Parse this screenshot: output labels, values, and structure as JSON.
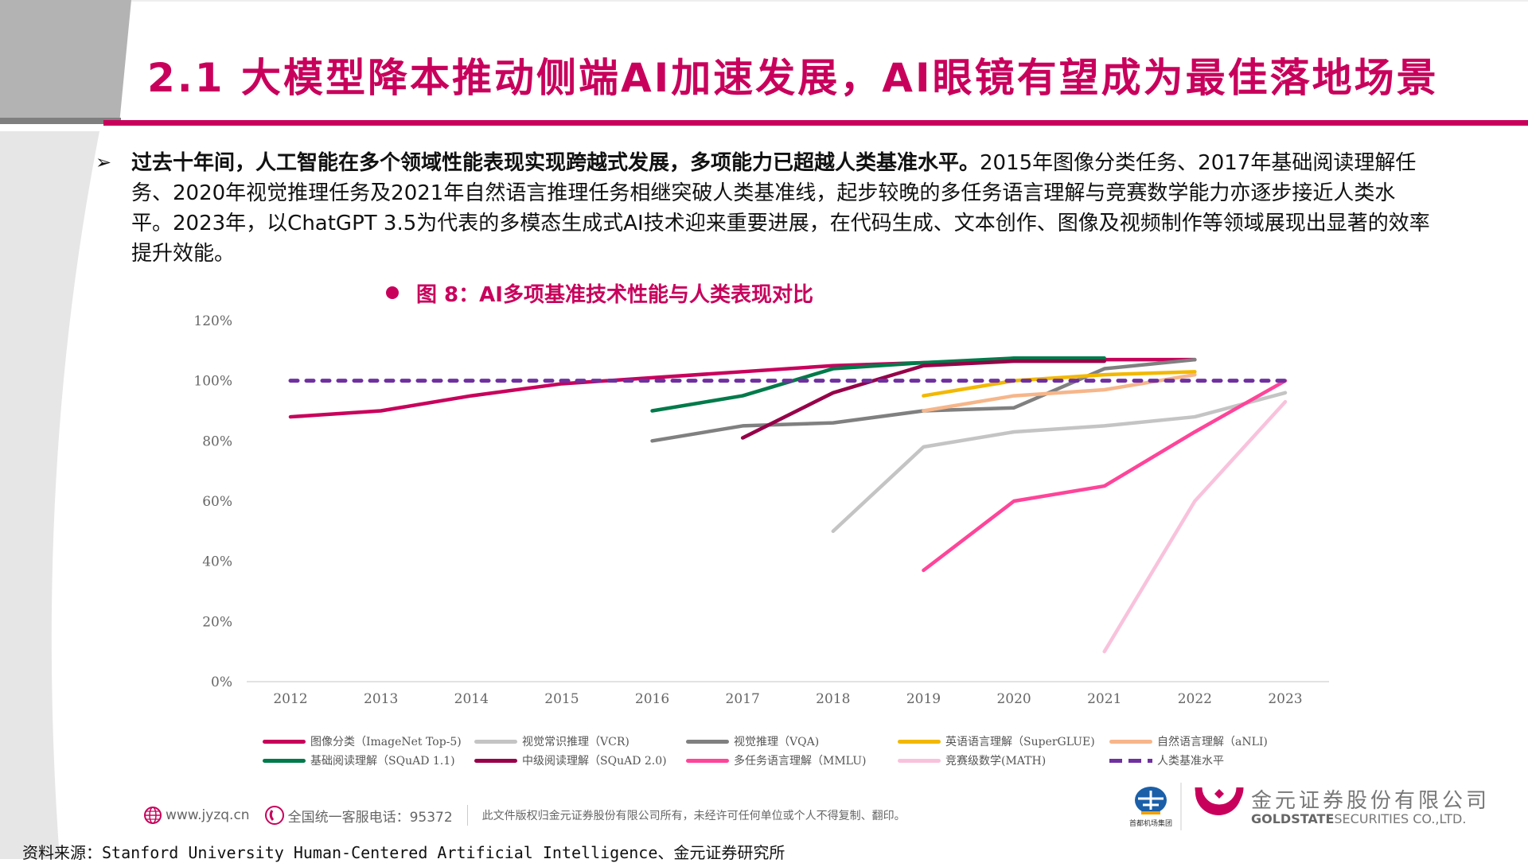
{
  "header": {
    "title": "2.1 大模型降本推动侧端AI加速发展，AI眼镜有望成为最佳落地场景",
    "accent_color": "#c8005c"
  },
  "body": {
    "bullet_icon": "arrow-right-icon",
    "bold_lead": "过去十年间，人工智能在多个领域性能表现实现跨越式发展，多项能力已超越人类基准水平。",
    "text": "2015年图像分类任务、2017年基础阅读理解任务、2020年视觉推理任务及2021年自然语言推理任务相继突破人类基准线，起步较晚的多任务语言理解与竞赛数学能力亦逐步接近人类水平。2023年，以ChatGPT 3.5为代表的多模态生成式AI技术迎来重要进展，在代码生成、文本创作、图像及视频制作等领域展现出显著的效率提升效能。"
  },
  "figure": {
    "caption": "图 8：AI多项基准技术性能与人类表现对比"
  },
  "chart_data": {
    "type": "line",
    "title": "",
    "xlabel": "",
    "ylabel": "",
    "x": [
      "2012",
      "2013",
      "2014",
      "2015",
      "2016",
      "2017",
      "2018",
      "2019",
      "2020",
      "2021",
      "2022",
      "2023"
    ],
    "ylim": [
      0,
      120
    ],
    "yticks": [
      "0%",
      "20%",
      "40%",
      "60%",
      "80%",
      "100%",
      "120%"
    ],
    "grid": false,
    "legend_position": "bottom",
    "series": [
      {
        "name": "图像分类（ImageNet Top-5)",
        "color": "#c8005c",
        "dashed": false,
        "values": [
          88,
          90,
          95,
          99,
          101,
          103,
          105,
          106,
          107,
          107,
          107,
          null
        ]
      },
      {
        "name": "视觉常识推理（VCR)",
        "color": "#c4c4c4",
        "dashed": false,
        "values": [
          null,
          null,
          null,
          null,
          null,
          null,
          50,
          78,
          83,
          85,
          88,
          96
        ]
      },
      {
        "name": "视觉推理（VQA)",
        "color": "#808080",
        "dashed": false,
        "values": [
          null,
          null,
          null,
          null,
          80,
          85,
          86,
          90,
          91,
          104,
          107,
          null
        ]
      },
      {
        "name": "英语语言理解（SuperGLUE)",
        "color": "#f2b800",
        "dashed": false,
        "values": [
          null,
          null,
          null,
          null,
          null,
          null,
          null,
          95,
          100,
          102,
          103,
          null
        ]
      },
      {
        "name": "自然语言理解（aNLI)",
        "color": "#f6b68a",
        "dashed": false,
        "values": [
          null,
          null,
          null,
          null,
          null,
          null,
          null,
          90,
          95,
          97,
          102,
          null
        ]
      },
      {
        "name": "基础阅读理解（SQuAD 1.1)",
        "color": "#007a4a",
        "dashed": false,
        "values": [
          null,
          null,
          null,
          null,
          90,
          95,
          104,
          106,
          107.5,
          107.5,
          null,
          null
        ]
      },
      {
        "name": "中级阅读理解（SQuAD 2.0)",
        "color": "#960048",
        "dashed": false,
        "values": [
          null,
          null,
          null,
          null,
          null,
          81,
          96,
          105,
          106.5,
          106.5,
          null,
          null
        ]
      },
      {
        "name": "多任务语言理解（MMLU)",
        "color": "#ff4499",
        "dashed": false,
        "values": [
          null,
          null,
          null,
          null,
          null,
          null,
          null,
          37,
          60,
          65,
          83,
          100
        ]
      },
      {
        "name": "竞赛级数学(MATH)",
        "color": "#f9c2dc",
        "dashed": false,
        "values": [
          null,
          null,
          null,
          null,
          null,
          null,
          null,
          null,
          null,
          10,
          60,
          93
        ]
      },
      {
        "name": "人类基准水平",
        "color": "#7030a0",
        "dashed": true,
        "values": [
          100,
          100,
          100,
          100,
          100,
          100,
          100,
          100,
          100,
          100,
          100,
          100
        ]
      }
    ]
  },
  "footer": {
    "website": "www.jyzq.cn",
    "hotline": "全国统一客服电话：95372",
    "copyright": "此文件版权归金元证券股份有限公司所有，未经许可任何单位或个人不得复制、翻印。",
    "company_cn": "金元证券股份有限公司",
    "company_en_bold": "GOLDSTATE",
    "company_en": "SECURITIES  CO.,LTD.",
    "partner_logo_text": "首都机场集团"
  },
  "source": "资料来源：Stanford University Human-Centered Artificial Intelligence、金元证券研究所"
}
